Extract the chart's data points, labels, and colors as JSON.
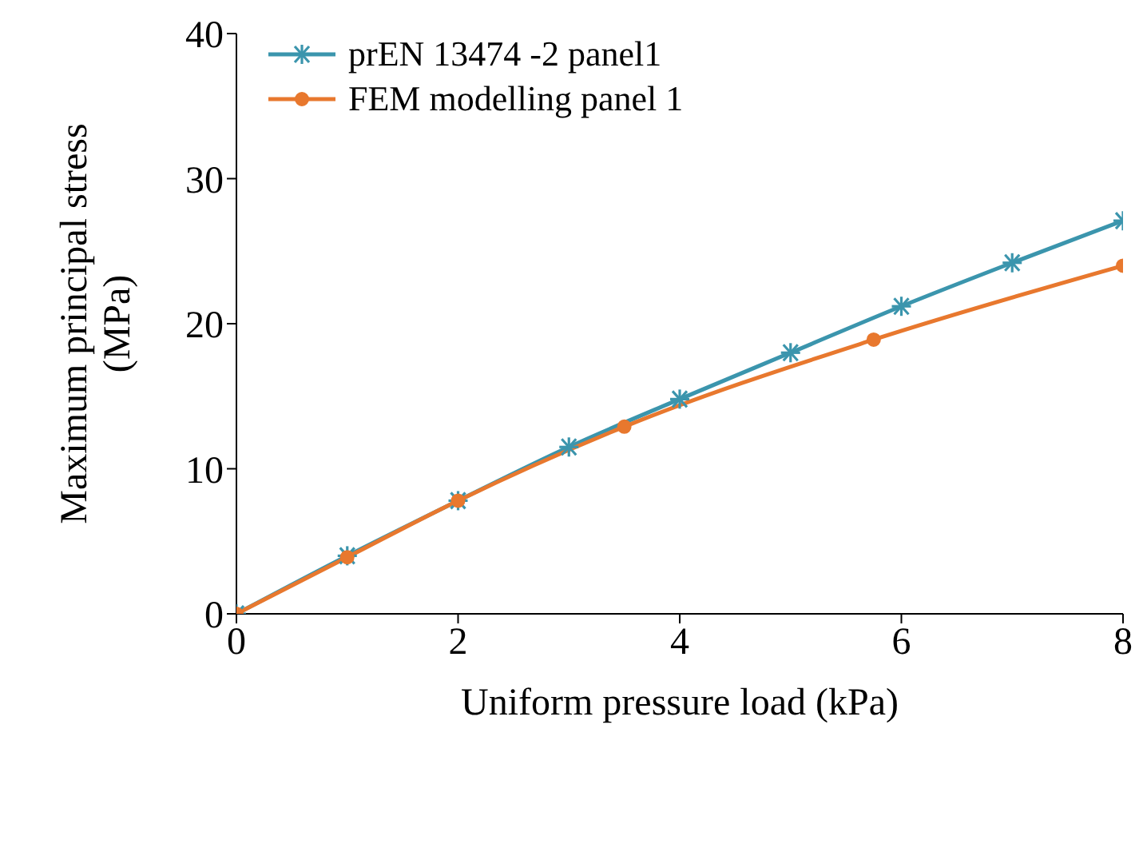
{
  "chart_data": {
    "type": "line",
    "xlabel": "Uniform pressure load (kPa)",
    "ylabel": "Maximum principal stress (MPa)",
    "xlim": [
      0,
      8
    ],
    "xticks": [
      0,
      2,
      4,
      6,
      8
    ],
    "ylim": [
      0,
      40
    ],
    "yticks": [
      0,
      10,
      20,
      30,
      40
    ],
    "grid": false,
    "legend": "top left",
    "line_style": "solid",
    "series": [
      {
        "name": "prEN 13474 -2 panel1",
        "color": "#3b95ad",
        "marker": "cross",
        "x": [
          0,
          1,
          2,
          3,
          4,
          5,
          6,
          7,
          8
        ],
        "values": [
          0,
          4.0,
          7.8,
          11.5,
          14.8,
          18.0,
          21.2,
          24.2,
          27.1
        ]
      },
      {
        "name": "FEM modelling panel 1",
        "color": "#e8782e",
        "marker": "circle",
        "x": [
          0,
          1,
          2,
          3.5,
          5.75,
          8
        ],
        "values": [
          0,
          3.9,
          7.8,
          12.9,
          18.9,
          24.0
        ]
      }
    ]
  }
}
